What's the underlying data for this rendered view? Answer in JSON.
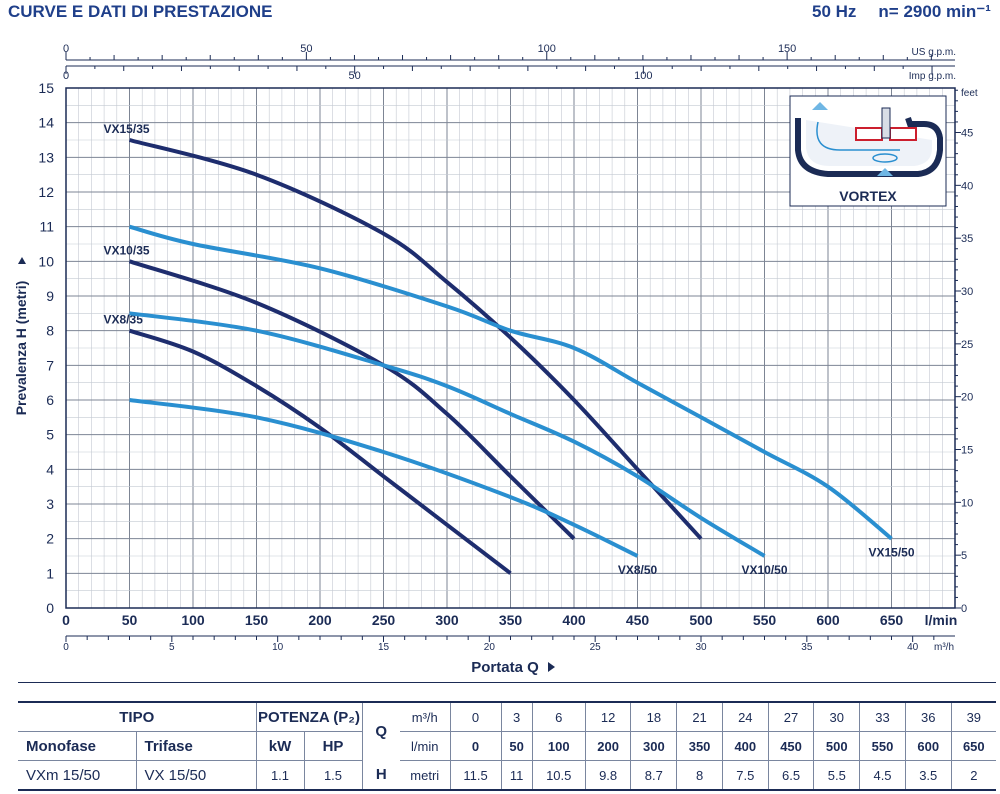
{
  "header": {
    "title": "CURVE E DATI DI PRESTAZIONE",
    "frequency": "50 Hz",
    "speed": "n= 2900 min⁻¹"
  },
  "inset": {
    "label": "VORTEX"
  },
  "chart_data": {
    "type": "line",
    "xlabel": "Portata Q",
    "ylabel": "Prevalenza H  (metri)",
    "x_unit": "l/min",
    "xlim": [
      0,
      700
    ],
    "ylim": [
      0,
      15
    ],
    "x_ticks": [
      0,
      50,
      100,
      150,
      200,
      250,
      300,
      350,
      400,
      450,
      500,
      550,
      600,
      650
    ],
    "y_ticks": [
      0,
      1,
      2,
      3,
      4,
      5,
      6,
      7,
      8,
      9,
      10,
      11,
      12,
      13,
      14,
      15
    ],
    "grid": true,
    "secondary_axes": {
      "us_gpm": {
        "label": "US g.p.m.",
        "ticks": [
          0,
          50,
          100,
          150
        ]
      },
      "imp_gpm": {
        "label": "Imp g.p.m.",
        "ticks": [
          0,
          50,
          100
        ]
      },
      "m3h": {
        "label": "m³/h",
        "ticks": [
          0,
          5,
          10,
          15,
          20,
          25,
          30,
          35,
          40
        ]
      },
      "feet": {
        "label": "feet",
        "ticks": [
          0,
          5,
          10,
          15,
          20,
          25,
          30,
          35,
          40,
          45
        ]
      }
    },
    "series": [
      {
        "name": "VX15/35",
        "group": "35",
        "color": "#1e2d6e",
        "label_pos": "start",
        "x": [
          50,
          150,
          250,
          300,
          350,
          400,
          450,
          500
        ],
        "y": [
          13.5,
          12.5,
          10.8,
          9.4,
          7.8,
          6.0,
          4.0,
          2.0
        ]
      },
      {
        "name": "VX10/35",
        "group": "35",
        "color": "#1e2d6e",
        "label_pos": "start",
        "x": [
          50,
          150,
          250,
          300,
          350,
          400
        ],
        "y": [
          10.0,
          8.8,
          7.0,
          5.6,
          3.8,
          2.0
        ]
      },
      {
        "name": "VX8/35",
        "group": "35",
        "color": "#1e2d6e",
        "label_pos": "start",
        "x": [
          50,
          100,
          150,
          200,
          250,
          300,
          350
        ],
        "y": [
          8.0,
          7.4,
          6.4,
          5.2,
          3.8,
          2.4,
          1.0
        ]
      },
      {
        "name": "VX15/50",
        "group": "50",
        "color": "#2a8fd0",
        "label_pos": "end",
        "x": [
          50,
          100,
          200,
          300,
          350,
          400,
          450,
          500,
          550,
          600,
          650
        ],
        "y": [
          11.0,
          10.5,
          9.8,
          8.7,
          8.0,
          7.5,
          6.5,
          5.5,
          4.5,
          3.5,
          2.0
        ]
      },
      {
        "name": "VX10/50",
        "group": "50",
        "color": "#2a8fd0",
        "label_pos": "end",
        "x": [
          50,
          150,
          250,
          300,
          350,
          400,
          450,
          500,
          550
        ],
        "y": [
          8.5,
          8.0,
          7.0,
          6.4,
          5.6,
          4.8,
          3.8,
          2.6,
          1.5
        ]
      },
      {
        "name": "VX8/50",
        "group": "50",
        "color": "#2a8fd0",
        "label_pos": "end",
        "x": [
          50,
          150,
          250,
          350,
          400,
          450
        ],
        "y": [
          6.0,
          5.5,
          4.5,
          3.2,
          2.4,
          1.5
        ]
      }
    ]
  },
  "table": {
    "head": {
      "tipo": "TIPO",
      "potenza": "POTENZA (P₂)",
      "q": "Q",
      "m3h_label": "m³/h",
      "lmin_label": "l/min",
      "h_label": "H",
      "metri_label": "metri"
    },
    "sub": {
      "monofase": "Monofase",
      "trifase": "Trifase",
      "kw": "kW",
      "hp": "HP"
    },
    "row": {
      "mono": "VXm 15/50",
      "tri": "VX 15/50",
      "kw": "1.1",
      "hp": "1.5"
    },
    "m3h": [
      "0",
      "3",
      "6",
      "12",
      "18",
      "21",
      "24",
      "27",
      "30",
      "33",
      "36",
      "39"
    ],
    "lmin": [
      "0",
      "50",
      "100",
      "200",
      "300",
      "350",
      "400",
      "450",
      "500",
      "550",
      "600",
      "650"
    ],
    "h": [
      "11.5",
      "11",
      "10.5",
      "9.8",
      "8.7",
      "8",
      "7.5",
      "6.5",
      "5.5",
      "4.5",
      "3.5",
      "2"
    ]
  }
}
